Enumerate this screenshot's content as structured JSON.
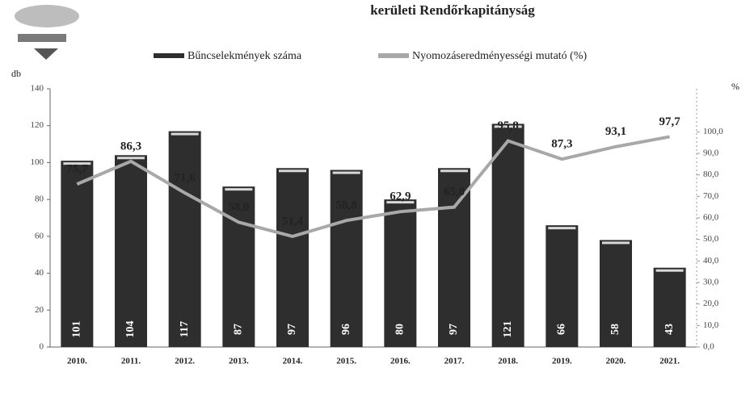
{
  "chart_data": {
    "type": "bar_line",
    "title": "kerületi Rendőrkapitányság",
    "ylabel": "db",
    "y2label": "%",
    "categories": [
      "2010.",
      "2011.",
      "2012.",
      "2013.",
      "2014.",
      "2015.",
      "2016.",
      "2017.",
      "2018.",
      "2019.",
      "2020.",
      "2021."
    ],
    "series": [
      {
        "name": "Bűncselekmények száma",
        "type": "bar",
        "color": "#2e2e2e",
        "values": [
          101,
          104,
          117,
          87,
          97,
          96,
          80,
          97,
          121,
          66,
          58,
          43
        ]
      },
      {
        "name": "Nyomozáseredményességi mutató (%)",
        "type": "line",
        "axis": "y2",
        "color": "#a8a8a8",
        "values": [
          75.7,
          86.3,
          71.6,
          58.0,
          51.4,
          58.8,
          62.9,
          65.0,
          95.8,
          87.3,
          93.1,
          97.7
        ],
        "value_labels": [
          "75,7",
          "86,3",
          "71,6",
          "58,0",
          "51,4",
          "58,8",
          "62,9",
          "65,0",
          "95,8",
          "87,3",
          "93,1",
          "97,7"
        ]
      }
    ],
    "ylim": [
      0,
      140
    ],
    "yticks": [
      0,
      20,
      40,
      60,
      80,
      100,
      120,
      140
    ],
    "y2lim": [
      0,
      120
    ],
    "y2ticks": [
      {
        "value": 0,
        "label": "0,0"
      },
      {
        "value": 10,
        "label": "10,0"
      },
      {
        "value": 20,
        "label": "20,0"
      },
      {
        "value": 30,
        "label": "30,0"
      },
      {
        "value": 40,
        "label": "40,0"
      },
      {
        "value": 50,
        "label": "50,0"
      },
      {
        "value": 60,
        "label": "60,0"
      },
      {
        "value": 70,
        "label": "70,0"
      },
      {
        "value": 80,
        "label": "80,0"
      },
      {
        "value": 90,
        "label": "90,0"
      },
      {
        "value": 100,
        "label": "100,0"
      }
    ]
  }
}
